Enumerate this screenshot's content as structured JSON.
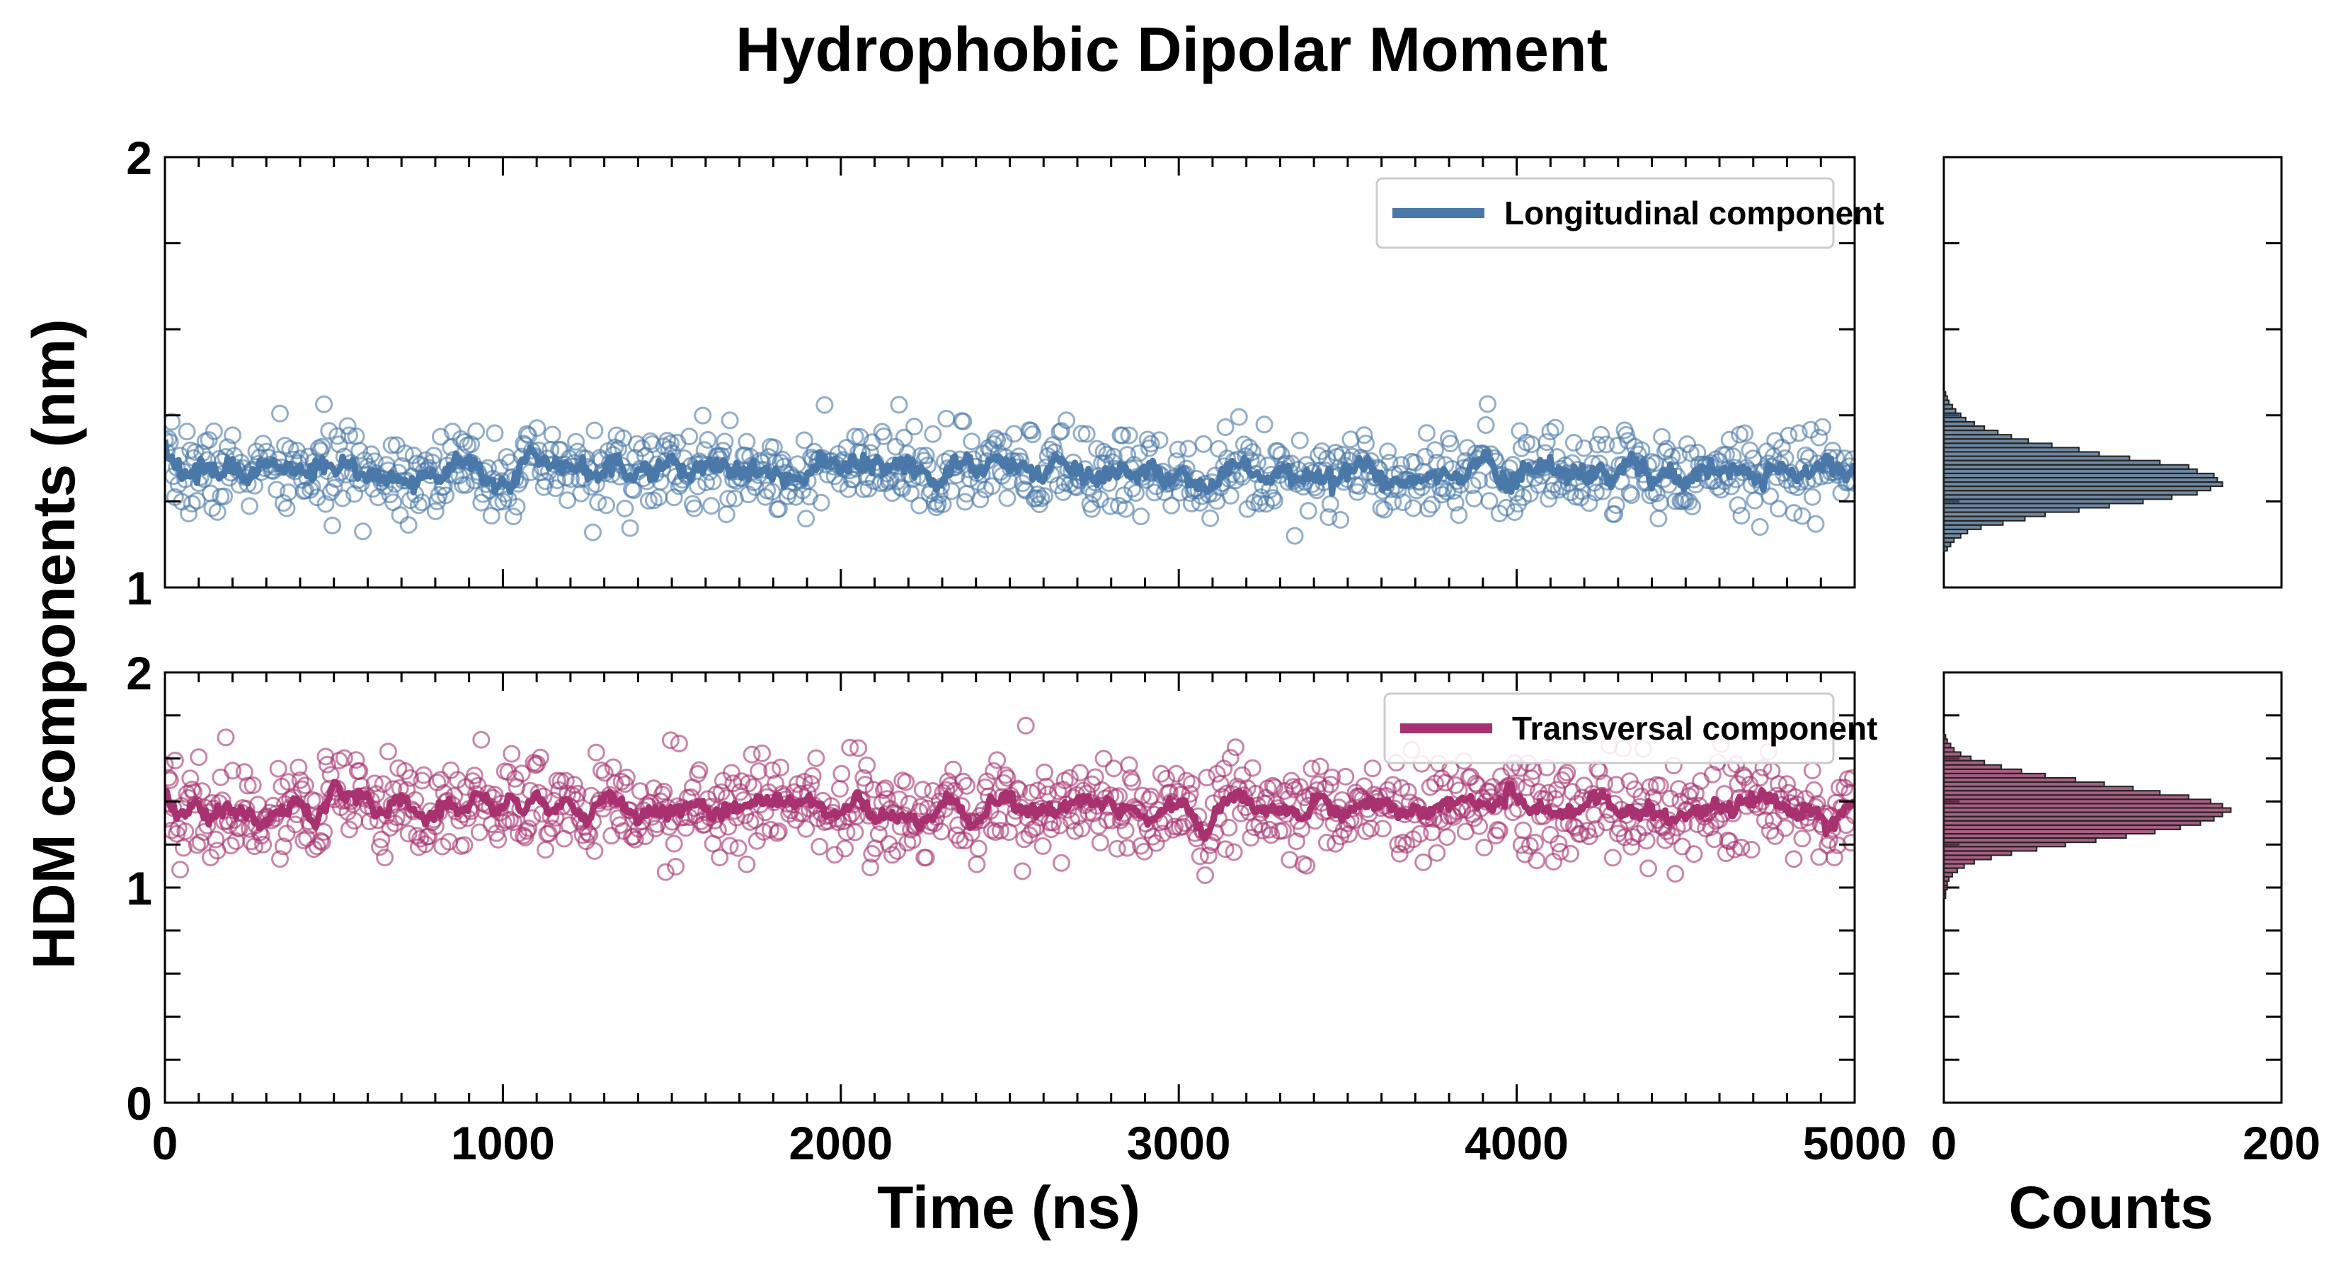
{
  "chart_data": {
    "title": "Hydrophobic Dipolar Moment",
    "ylabel": "HDM components (nm)",
    "xlabel_main": "Time (ns)",
    "xlabel_hist": "Counts",
    "colors": {
      "longitudinal": "#4a78a8",
      "transversal": "#a83270",
      "hist_long": "#3f5f7f",
      "hist_trans": "#8a2a5a",
      "axis": "#000000"
    },
    "panels": [
      {
        "id": "longitudinal",
        "type": "scatter",
        "legend": "Longitudinal component",
        "legend_position": "top-right",
        "xlim": [
          0,
          5000
        ],
        "ylim": [
          1,
          2
        ],
        "yticks": [
          1,
          2
        ],
        "ytick_labels": [
          "1",
          "2"
        ],
        "n_points": 1000,
        "mean": 1.27,
        "spread": 0.05,
        "smooth_amplitude": 0.03,
        "seed": 7,
        "hist": {
          "xlim": [
            0,
            200
          ],
          "bins": [
            1.09,
            1.1,
            1.11,
            1.12,
            1.13,
            1.14,
            1.15,
            1.16,
            1.17,
            1.18,
            1.19,
            1.2,
            1.21,
            1.22,
            1.23,
            1.24,
            1.25,
            1.26,
            1.27,
            1.28,
            1.29,
            1.3,
            1.31,
            1.32,
            1.33,
            1.34,
            1.35,
            1.36,
            1.37,
            1.38,
            1.39,
            1.4,
            1.41,
            1.42,
            1.43,
            1.44,
            1.45
          ],
          "counts": [
            2,
            4,
            6,
            10,
            14,
            22,
            35,
            48,
            60,
            80,
            98,
            118,
            135,
            150,
            158,
            165,
            162,
            160,
            150,
            145,
            128,
            110,
            92,
            80,
            64,
            50,
            40,
            32,
            24,
            18,
            13,
            10,
            7,
            5,
            3,
            2,
            1
          ]
        }
      },
      {
        "id": "transversal",
        "type": "scatter",
        "legend": "Transversal component",
        "legend_position": "top-right",
        "xlim": [
          0,
          5000
        ],
        "ylim": [
          0,
          2
        ],
        "yticks": [
          0,
          1,
          2
        ],
        "ytick_labels": [
          "0",
          "1",
          "2"
        ],
        "n_points": 1000,
        "mean": 1.37,
        "spread": 0.12,
        "smooth_amplitude": 0.04,
        "seed": 19,
        "hist": {
          "xlim": [
            0,
            200
          ],
          "bins": [
            0.96,
            0.98,
            1.0,
            1.02,
            1.04,
            1.06,
            1.08,
            1.1,
            1.12,
            1.14,
            1.16,
            1.18,
            1.2,
            1.22,
            1.24,
            1.26,
            1.28,
            1.3,
            1.32,
            1.34,
            1.36,
            1.38,
            1.4,
            1.42,
            1.44,
            1.46,
            1.48,
            1.5,
            1.52,
            1.54,
            1.56,
            1.58,
            1.6,
            1.62,
            1.64,
            1.66,
            1.68,
            1.7
          ],
          "counts": [
            1,
            1,
            2,
            2,
            3,
            5,
            8,
            12,
            18,
            28,
            40,
            55,
            72,
            90,
            108,
            125,
            140,
            152,
            160,
            165,
            170,
            165,
            158,
            145,
            128,
            112,
            95,
            78,
            60,
            46,
            34,
            24,
            16,
            10,
            6,
            4,
            2,
            1
          ]
        }
      }
    ],
    "main_xticks": [
      0,
      1000,
      2000,
      3000,
      4000,
      5000
    ],
    "main_xtick_labels": [
      "0",
      "1000",
      "2000",
      "3000",
      "4000",
      "5000"
    ],
    "hist_xticks": [
      0,
      200
    ],
    "hist_xtick_labels": [
      "0",
      "200"
    ]
  }
}
